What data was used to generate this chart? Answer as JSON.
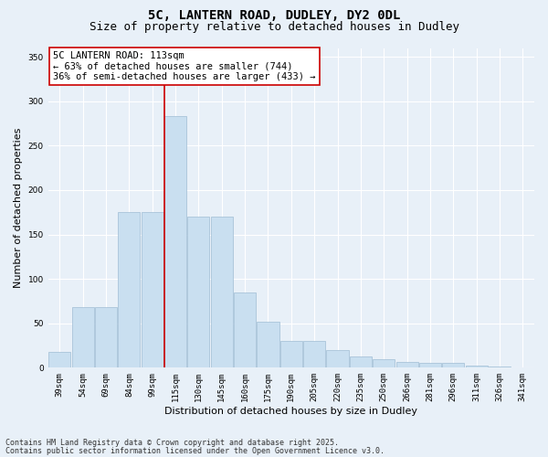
{
  "title1": "5C, LANTERN ROAD, DUDLEY, DY2 0DL",
  "title2": "Size of property relative to detached houses in Dudley",
  "xlabel": "Distribution of detached houses by size in Dudley",
  "ylabel": "Number of detached properties",
  "categories": [
    "39sqm",
    "54sqm",
    "69sqm",
    "84sqm",
    "99sqm",
    "115sqm",
    "130sqm",
    "145sqm",
    "160sqm",
    "175sqm",
    "190sqm",
    "205sqm",
    "220sqm",
    "235sqm",
    "250sqm",
    "266sqm",
    "281sqm",
    "296sqm",
    "311sqm",
    "326sqm",
    "341sqm"
  ],
  "values": [
    18,
    68,
    68,
    175,
    175,
    283,
    170,
    170,
    85,
    52,
    30,
    30,
    20,
    13,
    10,
    7,
    5,
    5,
    2,
    1,
    0
  ],
  "bar_color": "#c9dff0",
  "bar_edge_color": "#9fbdd4",
  "vline_index": 5,
  "vline_color": "#cc0000",
  "annotation_text": "5C LANTERN ROAD: 113sqm\n← 63% of detached houses are smaller (744)\n36% of semi-detached houses are larger (433) →",
  "annotation_box_color": "#ffffff",
  "annotation_box_edge": "#cc0000",
  "ylim": [
    0,
    360
  ],
  "yticks": [
    0,
    50,
    100,
    150,
    200,
    250,
    300,
    350
  ],
  "bg_color": "#e8f0f8",
  "plot_bg_color": "#e8f0f8",
  "footer1": "Contains HM Land Registry data © Crown copyright and database right 2025.",
  "footer2": "Contains public sector information licensed under the Open Government Licence v3.0.",
  "title_fontsize": 10,
  "subtitle_fontsize": 9,
  "axis_label_fontsize": 8,
  "tick_fontsize": 6.5,
  "annotation_fontsize": 7.5,
  "footer_fontsize": 6
}
